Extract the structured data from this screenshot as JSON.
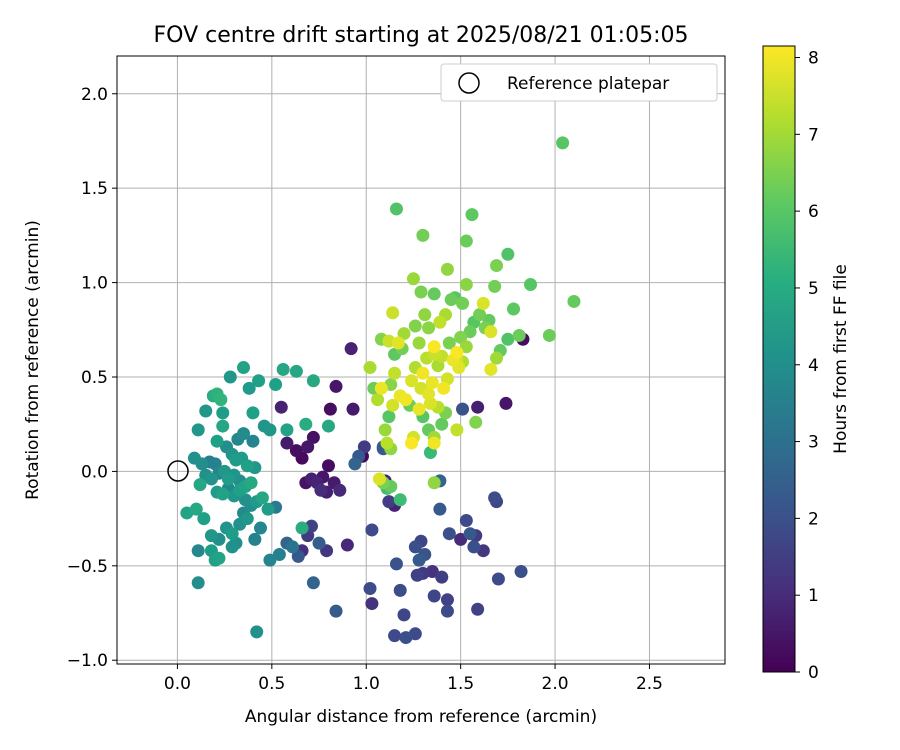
{
  "chart_data": {
    "type": "scatter",
    "title": "FOV centre drift starting at 2025/08/21 01:05:05",
    "xlabel": "Angular distance from reference (arcmin)",
    "ylabel": "Rotation from reference (arcmin)",
    "xlim": [
      -0.32,
      2.9
    ],
    "ylim": [
      -1.02,
      2.2
    ],
    "xticks": [
      "0.0",
      "0.5",
      "1.0",
      "1.5",
      "2.0",
      "2.5"
    ],
    "xtick_values": [
      0.0,
      0.5,
      1.0,
      1.5,
      2.0,
      2.5
    ],
    "yticks": [
      "−1.0",
      "−0.5",
      "0.0",
      "0.5",
      "1.0",
      "1.5",
      "2.0"
    ],
    "ytick_values": [
      -1.0,
      -0.5,
      0.0,
      0.5,
      1.0,
      1.5,
      2.0
    ],
    "grid": true,
    "legend": {
      "label": "Reference platepar",
      "placement": "top-right"
    },
    "reference_point": {
      "x": 0.0,
      "y": 0.0
    },
    "colorbar": {
      "label": "Hours from first FF file",
      "colormap": "viridis",
      "range": [
        0,
        8.15
      ],
      "ticks": [
        "0",
        "1",
        "2",
        "3",
        "4",
        "5",
        "6",
        "7",
        "8"
      ],
      "tick_values": [
        0,
        1,
        2,
        3,
        4,
        5,
        6,
        7,
        8
      ]
    },
    "points": [
      {
        "x": 0.11,
        "y": 0.22,
        "h": 4.3
      },
      {
        "x": 0.09,
        "y": 0.07,
        "h": 4.1
      },
      {
        "x": 0.05,
        "y": -0.22,
        "h": 4.7
      },
      {
        "x": 0.13,
        "y": 0.04,
        "h": 4.0
      },
      {
        "x": 0.15,
        "y": 0.32,
        "h": 4.3
      },
      {
        "x": 0.19,
        "y": 0.4,
        "h": 5.0
      },
      {
        "x": 0.21,
        "y": 0.41,
        "h": 5.2
      },
      {
        "x": 0.23,
        "y": 0.38,
        "h": 5.3
      },
      {
        "x": 0.21,
        "y": 0.16,
        "h": 4.6
      },
      {
        "x": 0.24,
        "y": 0.31,
        "h": 4.5
      },
      {
        "x": 0.24,
        "y": 0.24,
        "h": 4.8
      },
      {
        "x": 0.28,
        "y": 0.5,
        "h": 4.3
      },
      {
        "x": 0.35,
        "y": 0.55,
        "h": 4.7
      },
      {
        "x": 0.38,
        "y": 0.44,
        "h": 4.4
      },
      {
        "x": 0.43,
        "y": 0.48,
        "h": 4.6
      },
      {
        "x": 0.52,
        "y": 0.46,
        "h": 4.6
      },
      {
        "x": 0.56,
        "y": 0.54,
        "h": 4.8
      },
      {
        "x": 0.63,
        "y": 0.53,
        "h": 4.8
      },
      {
        "x": 0.72,
        "y": 0.48,
        "h": 4.9
      },
      {
        "x": 0.4,
        "y": 0.31,
        "h": 4.6
      },
      {
        "x": 0.46,
        "y": 0.24,
        "h": 4.2
      },
      {
        "x": 0.49,
        "y": 0.22,
        "h": 4.3
      },
      {
        "x": 0.58,
        "y": 0.22,
        "h": 4.7
      },
      {
        "x": 0.68,
        "y": 0.25,
        "h": 5.0
      },
      {
        "x": 0.8,
        "y": 0.24,
        "h": 4.9
      },
      {
        "x": 0.32,
        "y": 0.17,
        "h": 3.8
      },
      {
        "x": 0.35,
        "y": 0.2,
        "h": 3.9
      },
      {
        "x": 0.4,
        "y": 0.16,
        "h": 3.7
      },
      {
        "x": 0.26,
        "y": 0.13,
        "h": 4.0
      },
      {
        "x": 0.29,
        "y": 0.09,
        "h": 4.2
      },
      {
        "x": 0.31,
        "y": 0.06,
        "h": 4.5
      },
      {
        "x": 0.34,
        "y": 0.07,
        "h": 4.4
      },
      {
        "x": 0.37,
        "y": 0.03,
        "h": 4.6
      },
      {
        "x": 0.41,
        "y": 0.02,
        "h": 4.3
      },
      {
        "x": 0.17,
        "y": 0.05,
        "h": 3.5
      },
      {
        "x": 0.2,
        "y": 0.04,
        "h": 3.6
      },
      {
        "x": 0.22,
        "y": -0.01,
        "h": 3.8
      },
      {
        "x": 0.25,
        "y": 0.0,
        "h": 4.3
      },
      {
        "x": 0.27,
        "y": -0.04,
        "h": 4.5
      },
      {
        "x": 0.3,
        "y": -0.02,
        "h": 4.2
      },
      {
        "x": 0.33,
        "y": -0.05,
        "h": 4.0
      },
      {
        "x": 0.36,
        "y": -0.08,
        "h": 4.7
      },
      {
        "x": 0.39,
        "y": -0.06,
        "h": 4.9
      },
      {
        "x": 0.12,
        "y": -0.07,
        "h": 4.8
      },
      {
        "x": 0.15,
        "y": -0.02,
        "h": 4.1
      },
      {
        "x": 0.18,
        "y": -0.04,
        "h": 4.2
      },
      {
        "x": 0.21,
        "y": -0.11,
        "h": 4.4
      },
      {
        "x": 0.24,
        "y": -0.12,
        "h": 4.7
      },
      {
        "x": 0.27,
        "y": -0.09,
        "h": 3.8
      },
      {
        "x": 0.3,
        "y": -0.13,
        "h": 4.3
      },
      {
        "x": 0.33,
        "y": -0.1,
        "h": 4.6
      },
      {
        "x": 0.36,
        "y": -0.15,
        "h": 4.1
      },
      {
        "x": 0.39,
        "y": -0.18,
        "h": 4.0
      },
      {
        "x": 0.42,
        "y": -0.16,
        "h": 4.4
      },
      {
        "x": 0.45,
        "y": -0.14,
        "h": 4.8
      },
      {
        "x": 0.48,
        "y": -0.2,
        "h": 4.5
      },
      {
        "x": 0.1,
        "y": -0.2,
        "h": 4.9
      },
      {
        "x": 0.14,
        "y": -0.25,
        "h": 4.6
      },
      {
        "x": 0.18,
        "y": -0.34,
        "h": 4.3
      },
      {
        "x": 0.22,
        "y": -0.36,
        "h": 4.0
      },
      {
        "x": 0.26,
        "y": -0.3,
        "h": 4.2
      },
      {
        "x": 0.29,
        "y": -0.33,
        "h": 4.5
      },
      {
        "x": 0.33,
        "y": -0.28,
        "h": 4.1
      },
      {
        "x": 0.37,
        "y": -0.25,
        "h": 4.3
      },
      {
        "x": 0.41,
        "y": -0.36,
        "h": 3.6
      },
      {
        "x": 0.44,
        "y": -0.3,
        "h": 3.8
      },
      {
        "x": 0.31,
        "y": -0.38,
        "h": 4.0
      },
      {
        "x": 0.35,
        "y": -0.22,
        "h": 3.9
      },
      {
        "x": 0.11,
        "y": -0.42,
        "h": 3.8
      },
      {
        "x": 0.18,
        "y": -0.42,
        "h": 4.5
      },
      {
        "x": 0.2,
        "y": -0.47,
        "h": 4.6
      },
      {
        "x": 0.22,
        "y": -0.46,
        "h": 4.7
      },
      {
        "x": 0.11,
        "y": -0.59,
        "h": 4.0
      },
      {
        "x": 0.29,
        "y": -0.4,
        "h": 4.1
      },
      {
        "x": 0.42,
        "y": -0.85,
        "h": 4.1
      },
      {
        "x": 0.49,
        "y": -0.47,
        "h": 3.7
      },
      {
        "x": 0.54,
        "y": -0.44,
        "h": 3.6
      },
      {
        "x": 0.61,
        "y": -0.4,
        "h": 3.1
      },
      {
        "x": 0.66,
        "y": -0.3,
        "h": 5.0
      },
      {
        "x": 0.52,
        "y": -0.19,
        "h": 3.3
      },
      {
        "x": 0.58,
        "y": -0.38,
        "h": 2.6
      },
      {
        "x": 0.64,
        "y": -0.45,
        "h": 2.2
      },
      {
        "x": 0.66,
        "y": -0.42,
        "h": 1.1
      },
      {
        "x": 0.69,
        "y": -0.34,
        "h": 1.4
      },
      {
        "x": 0.71,
        "y": -0.29,
        "h": 1.6
      },
      {
        "x": 0.72,
        "y": -0.59,
        "h": 2.6
      },
      {
        "x": 0.75,
        "y": -0.38,
        "h": 2.4
      },
      {
        "x": 0.79,
        "y": -0.42,
        "h": 1.3
      },
      {
        "x": 0.84,
        "y": -0.74,
        "h": 2.3
      },
      {
        "x": 0.9,
        "y": -0.39,
        "h": 0.9
      },
      {
        "x": 0.55,
        "y": 0.34,
        "h": 0.8
      },
      {
        "x": 0.58,
        "y": 0.15,
        "h": 0.6
      },
      {
        "x": 0.63,
        "y": 0.11,
        "h": 0.3
      },
      {
        "x": 0.66,
        "y": 0.07,
        "h": 0.2
      },
      {
        "x": 0.69,
        "y": 0.13,
        "h": 0.5
      },
      {
        "x": 0.72,
        "y": 0.18,
        "h": 0.4
      },
      {
        "x": 0.68,
        "y": -0.06,
        "h": 0.4
      },
      {
        "x": 0.71,
        "y": -0.04,
        "h": 0.7
      },
      {
        "x": 0.74,
        "y": -0.06,
        "h": 0.8
      },
      {
        "x": 0.77,
        "y": -0.03,
        "h": 0.5
      },
      {
        "x": 0.8,
        "y": 0.03,
        "h": 0.3
      },
      {
        "x": 0.83,
        "y": -0.06,
        "h": 0.6
      },
      {
        "x": 0.86,
        "y": -0.1,
        "h": 0.9
      },
      {
        "x": 0.79,
        "y": -0.11,
        "h": 0.7
      },
      {
        "x": 0.76,
        "y": -0.1,
        "h": 1.0
      },
      {
        "x": 0.81,
        "y": 0.33,
        "h": 0.3
      },
      {
        "x": 0.84,
        "y": 0.45,
        "h": 0.5
      },
      {
        "x": 0.92,
        "y": 0.65,
        "h": 0.8
      },
      {
        "x": 0.93,
        "y": 0.33,
        "h": 0.6
      },
      {
        "x": 0.98,
        "y": 0.08,
        "h": 0.2
      },
      {
        "x": 0.94,
        "y": 0.04,
        "h": 2.6
      },
      {
        "x": 0.96,
        "y": 0.08,
        "h": 2.3
      },
      {
        "x": 0.99,
        "y": 0.13,
        "h": 1.4
      },
      {
        "x": 1.03,
        "y": -0.31,
        "h": 1.8
      },
      {
        "x": 1.02,
        "y": -0.62,
        "h": 1.9
      },
      {
        "x": 1.03,
        "y": -0.7,
        "h": 1.2
      },
      {
        "x": 1.09,
        "y": 0.12,
        "h": 2.3
      },
      {
        "x": 1.1,
        "y": -0.05,
        "h": 0.9
      },
      {
        "x": 1.12,
        "y": -0.16,
        "h": 1.5
      },
      {
        "x": 1.15,
        "y": -0.18,
        "h": 0.8
      },
      {
        "x": 1.16,
        "y": -0.49,
        "h": 2.1
      },
      {
        "x": 1.18,
        "y": -0.63,
        "h": 1.9
      },
      {
        "x": 1.2,
        "y": -0.76,
        "h": 1.7
      },
      {
        "x": 1.15,
        "y": -0.87,
        "h": 1.8
      },
      {
        "x": 1.21,
        "y": -0.88,
        "h": 2.0
      },
      {
        "x": 1.26,
        "y": -0.86,
        "h": 1.8
      },
      {
        "x": 1.26,
        "y": -0.4,
        "h": 2.0
      },
      {
        "x": 1.28,
        "y": -0.47,
        "h": 2.3
      },
      {
        "x": 1.29,
        "y": -0.37,
        "h": 1.7
      },
      {
        "x": 1.31,
        "y": -0.44,
        "h": 2.1
      },
      {
        "x": 1.27,
        "y": -0.55,
        "h": 1.6
      },
      {
        "x": 1.3,
        "y": -0.54,
        "h": 1.4
      },
      {
        "x": 1.35,
        "y": -0.53,
        "h": 1.2
      },
      {
        "x": 1.36,
        "y": -0.66,
        "h": 1.7
      },
      {
        "x": 1.4,
        "y": -0.56,
        "h": 1.5
      },
      {
        "x": 1.43,
        "y": -0.74,
        "h": 1.8
      },
      {
        "x": 1.43,
        "y": -0.68,
        "h": 1.6
      },
      {
        "x": 1.44,
        "y": -0.33,
        "h": 2.0
      },
      {
        "x": 1.39,
        "y": -0.2,
        "h": 2.3
      },
      {
        "x": 1.39,
        "y": -0.05,
        "h": 2.6
      },
      {
        "x": 1.5,
        "y": -0.36,
        "h": 1.0
      },
      {
        "x": 1.53,
        "y": -0.26,
        "h": 1.8
      },
      {
        "x": 1.55,
        "y": -0.33,
        "h": 2.2
      },
      {
        "x": 1.57,
        "y": -0.4,
        "h": 2.0
      },
      {
        "x": 1.58,
        "y": -0.34,
        "h": 1.4
      },
      {
        "x": 1.59,
        "y": -0.73,
        "h": 1.6
      },
      {
        "x": 1.62,
        "y": -0.42,
        "h": 1.3
      },
      {
        "x": 1.68,
        "y": -0.14,
        "h": 1.9
      },
      {
        "x": 1.69,
        "y": -0.16,
        "h": 1.7
      },
      {
        "x": 1.7,
        "y": -0.57,
        "h": 1.8
      },
      {
        "x": 1.82,
        "y": -0.53,
        "h": 2.0
      },
      {
        "x": 1.51,
        "y": 0.33,
        "h": 2.1
      },
      {
        "x": 1.59,
        "y": 0.34,
        "h": 0.7
      },
      {
        "x": 1.74,
        "y": 0.36,
        "h": 0.5
      },
      {
        "x": 1.83,
        "y": 0.7,
        "h": 0.3
      },
      {
        "x": 1.34,
        "y": 0.1,
        "h": 5.5
      },
      {
        "x": 1.36,
        "y": -0.06,
        "h": 6.8
      },
      {
        "x": 1.09,
        "y": 0.13,
        "h": 2.3
      },
      {
        "x": 1.07,
        "y": -0.04,
        "h": 7.7
      },
      {
        "x": 1.09,
        "y": -0.06,
        "h": 6.5
      },
      {
        "x": 1.13,
        "y": -0.08,
        "h": 6.2
      },
      {
        "x": 1.18,
        "y": -0.15,
        "h": 5.6
      },
      {
        "x": 1.11,
        "y": -0.09,
        "h": 5.7
      },
      {
        "x": 1.04,
        "y": 0.44,
        "h": 6.3
      },
      {
        "x": 1.06,
        "y": 0.38,
        "h": 7.2
      },
      {
        "x": 1.08,
        "y": 0.44,
        "h": 7.9
      },
      {
        "x": 1.1,
        "y": 0.22,
        "h": 6.9
      },
      {
        "x": 1.11,
        "y": 0.15,
        "h": 7.3
      },
      {
        "x": 1.13,
        "y": 0.12,
        "h": 6.8
      },
      {
        "x": 1.12,
        "y": 0.29,
        "h": 6.0
      },
      {
        "x": 1.14,
        "y": 0.35,
        "h": 7.6
      },
      {
        "x": 1.13,
        "y": 0.46,
        "h": 6.7
      },
      {
        "x": 1.15,
        "y": 0.52,
        "h": 7.4
      },
      {
        "x": 1.02,
        "y": 0.55,
        "h": 7.1
      },
      {
        "x": 1.08,
        "y": 0.7,
        "h": 6.6
      },
      {
        "x": 1.14,
        "y": 0.84,
        "h": 7.5
      },
      {
        "x": 1.15,
        "y": 0.62,
        "h": 6.1
      },
      {
        "x": 1.17,
        "y": 0.68,
        "h": 7.8
      },
      {
        "x": 1.19,
        "y": 0.65,
        "h": 6.4
      },
      {
        "x": 1.2,
        "y": 0.73,
        "h": 7.0
      },
      {
        "x": 1.18,
        "y": 0.4,
        "h": 7.9
      },
      {
        "x": 1.21,
        "y": 0.38,
        "h": 8.0
      },
      {
        "x": 1.24,
        "y": 0.48,
        "h": 7.7
      },
      {
        "x": 1.26,
        "y": 0.55,
        "h": 7.2
      },
      {
        "x": 1.29,
        "y": 0.44,
        "h": 7.6
      },
      {
        "x": 1.28,
        "y": 0.68,
        "h": 6.9
      },
      {
        "x": 1.3,
        "y": 0.52,
        "h": 8.0
      },
      {
        "x": 1.32,
        "y": 0.6,
        "h": 7.3
      },
      {
        "x": 1.33,
        "y": 0.41,
        "h": 7.8
      },
      {
        "x": 1.35,
        "y": 0.47,
        "h": 7.9
      },
      {
        "x": 1.36,
        "y": 0.62,
        "h": 7.5
      },
      {
        "x": 1.33,
        "y": 0.76,
        "h": 6.7
      },
      {
        "x": 1.36,
        "y": 0.66,
        "h": 8.1
      },
      {
        "x": 1.38,
        "y": 0.56,
        "h": 7.1
      },
      {
        "x": 1.4,
        "y": 0.61,
        "h": 7.4
      },
      {
        "x": 1.41,
        "y": 0.44,
        "h": 8.0
      },
      {
        "x": 1.43,
        "y": 0.49,
        "h": 7.6
      },
      {
        "x": 1.44,
        "y": 0.68,
        "h": 6.5
      },
      {
        "x": 1.46,
        "y": 0.59,
        "h": 7.9
      },
      {
        "x": 1.48,
        "y": 0.63,
        "h": 8.1
      },
      {
        "x": 1.49,
        "y": 0.55,
        "h": 7.8
      },
      {
        "x": 1.5,
        "y": 0.71,
        "h": 6.6
      },
      {
        "x": 1.51,
        "y": 0.58,
        "h": 7.2
      },
      {
        "x": 1.53,
        "y": 0.66,
        "h": 6.9
      },
      {
        "x": 1.55,
        "y": 0.74,
        "h": 6.3
      },
      {
        "x": 1.57,
        "y": 0.79,
        "h": 6.0
      },
      {
        "x": 1.6,
        "y": 0.83,
        "h": 6.4
      },
      {
        "x": 1.62,
        "y": 0.89,
        "h": 7.7
      },
      {
        "x": 1.63,
        "y": 0.76,
        "h": 6.5
      },
      {
        "x": 1.65,
        "y": 0.8,
        "h": 6.2
      },
      {
        "x": 1.66,
        "y": 0.74,
        "h": 7.7
      },
      {
        "x": 1.66,
        "y": 0.54,
        "h": 7.8
      },
      {
        "x": 1.69,
        "y": 0.6,
        "h": 7.0
      },
      {
        "x": 1.71,
        "y": 0.64,
        "h": 6.2
      },
      {
        "x": 1.75,
        "y": 0.7,
        "h": 5.9
      },
      {
        "x": 1.78,
        "y": 0.86,
        "h": 6.1
      },
      {
        "x": 1.87,
        "y": 0.99,
        "h": 6.0
      },
      {
        "x": 1.68,
        "y": 0.98,
        "h": 6.4
      },
      {
        "x": 1.69,
        "y": 1.09,
        "h": 6.5
      },
      {
        "x": 1.75,
        "y": 1.15,
        "h": 5.9
      },
      {
        "x": 1.53,
        "y": 1.22,
        "h": 6.3
      },
      {
        "x": 1.56,
        "y": 1.36,
        "h": 6.1
      },
      {
        "x": 1.3,
        "y": 1.25,
        "h": 6.4
      },
      {
        "x": 1.16,
        "y": 1.39,
        "h": 5.9
      },
      {
        "x": 1.25,
        "y": 1.02,
        "h": 6.9
      },
      {
        "x": 1.29,
        "y": 0.95,
        "h": 6.5
      },
      {
        "x": 1.36,
        "y": 0.94,
        "h": 6.2
      },
      {
        "x": 1.43,
        "y": 1.07,
        "h": 6.8
      },
      {
        "x": 1.45,
        "y": 0.91,
        "h": 6.3
      },
      {
        "x": 1.47,
        "y": 0.92,
        "h": 6.0
      },
      {
        "x": 1.53,
        "y": 0.99,
        "h": 6.7
      },
      {
        "x": 1.51,
        "y": 0.89,
        "h": 6.4
      },
      {
        "x": 1.42,
        "y": 0.83,
        "h": 7.1
      },
      {
        "x": 1.39,
        "y": 0.79,
        "h": 7.4
      },
      {
        "x": 1.31,
        "y": 0.83,
        "h": 6.8
      },
      {
        "x": 1.26,
        "y": 0.77,
        "h": 6.6
      },
      {
        "x": 1.23,
        "y": 0.35,
        "h": 6.3
      },
      {
        "x": 1.3,
        "y": 0.29,
        "h": 6.0
      },
      {
        "x": 1.33,
        "y": 0.22,
        "h": 6.2
      },
      {
        "x": 1.36,
        "y": 0.18,
        "h": 7.0
      },
      {
        "x": 1.25,
        "y": 0.18,
        "h": 7.6
      },
      {
        "x": 1.28,
        "y": 0.33,
        "h": 7.9
      },
      {
        "x": 1.34,
        "y": 0.36,
        "h": 7.7
      },
      {
        "x": 1.38,
        "y": 0.34,
        "h": 7.3
      },
      {
        "x": 1.4,
        "y": 0.25,
        "h": 6.2
      },
      {
        "x": 1.42,
        "y": 0.31,
        "h": 6.5
      },
      {
        "x": 1.48,
        "y": 0.22,
        "h": 7.4
      },
      {
        "x": 1.58,
        "y": 0.26,
        "h": 6.6
      },
      {
        "x": 1.36,
        "y": 0.15,
        "h": 8.0
      },
      {
        "x": 1.24,
        "y": 0.15,
        "h": 8.1
      },
      {
        "x": 1.12,
        "y": 0.69,
        "h": 7.5
      },
      {
        "x": 1.48,
        "y": 0.59,
        "h": 7.6
      },
      {
        "x": 1.81,
        "y": 0.72,
        "h": 6.3
      },
      {
        "x": 2.04,
        "y": 1.74,
        "h": 6.0
      },
      {
        "x": 2.1,
        "y": 0.9,
        "h": 6.2
      },
      {
        "x": 1.97,
        "y": 0.72,
        "h": 6.3
      }
    ]
  }
}
